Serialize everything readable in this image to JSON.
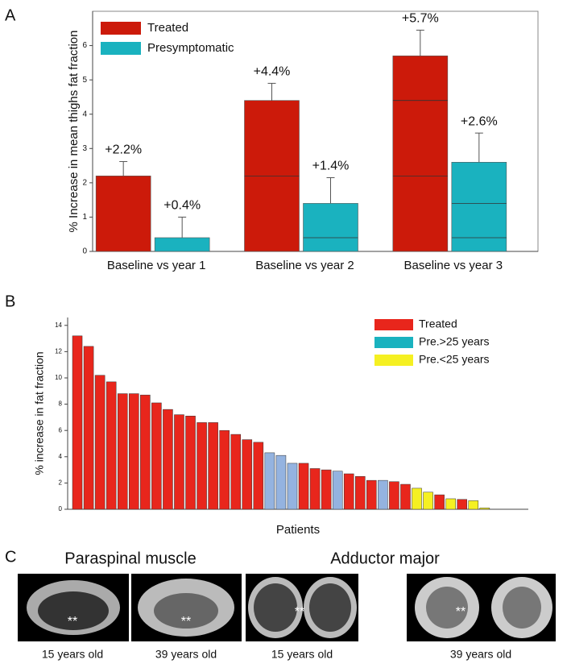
{
  "panel_labels": [
    "A",
    "B",
    "C"
  ],
  "chart_data": [
    {
      "type": "bar",
      "ylabel": "% Increase in mean thighs fat fraction",
      "categories": [
        "Baseline vs year 1",
        "Baseline vs year 2",
        "Baseline vs year 3"
      ],
      "series": [
        {
          "name": "Treated",
          "color": "#cc1a0a",
          "values": [
            2.2,
            4.4,
            5.7
          ],
          "errors": [
            0.42,
            0.5,
            0.75
          ],
          "value_labels": [
            "+2.2%",
            "+4.4%",
            "+5.7%"
          ]
        },
        {
          "name": "Presymptomatic",
          "color": "#1ab2bf",
          "values": [
            0.4,
            1.4,
            2.6
          ],
          "errors": [
            0.6,
            0.75,
            0.85
          ],
          "value_labels": [
            "+0.4%",
            "+1.4%",
            "+2.6%"
          ]
        }
      ],
      "ylim": [
        0,
        7
      ],
      "yticks": [
        0,
        1,
        2,
        3,
        4,
        5,
        6
      ],
      "legend": "upper-left"
    },
    {
      "type": "bar",
      "ylabel": "% increase in fat fraction",
      "xlabel": "Patients",
      "values": [
        13.2,
        12.4,
        10.2,
        9.7,
        8.8,
        8.8,
        8.7,
        8.1,
        7.6,
        7.2,
        7.1,
        6.6,
        6.6,
        6.0,
        5.7,
        5.3,
        5.1,
        4.3,
        4.1,
        3.5,
        3.5,
        3.1,
        3.0,
        2.9,
        2.7,
        2.5,
        2.2,
        2.2,
        2.1,
        1.9,
        1.6,
        1.3,
        1.1,
        0.8,
        0.75,
        0.65,
        0.1
      ],
      "bar_colors": [
        "#e8261c",
        "#e8261c",
        "#e8261c",
        "#e8261c",
        "#e8261c",
        "#e8261c",
        "#e8261c",
        "#e8261c",
        "#e8261c",
        "#e8261c",
        "#e8261c",
        "#e8261c",
        "#e8261c",
        "#e8261c",
        "#e8261c",
        "#e8261c",
        "#e8261c",
        "#94b3e0",
        "#94b3e0",
        "#94b3e0",
        "#e8261c",
        "#e8261c",
        "#e8261c",
        "#94b3e0",
        "#e8261c",
        "#e8261c",
        "#e8261c",
        "#94b3e0",
        "#e8261c",
        "#e8261c",
        "#f5f022",
        "#f5f022",
        "#e8261c",
        "#f5f022",
        "#e8261c",
        "#f5f022",
        "#f5f022"
      ],
      "legend_entries": [
        {
          "name": "Treated",
          "color": "#e8261c"
        },
        {
          "name": "Pre.>25 years",
          "color": "#1ab2bf"
        },
        {
          "name": "Pre.<25 years",
          "color": "#f5f022"
        }
      ],
      "ylim": [
        0,
        14.6
      ],
      "yticks": [
        0,
        2,
        4,
        6,
        8,
        10,
        12,
        14
      ],
      "legend": "upper-right"
    }
  ],
  "images": {
    "titles": [
      "Paraspinal muscle",
      "Adductor major"
    ],
    "captions": [
      "15 years old",
      "39 years old",
      "15 years old",
      "39 years old"
    ],
    "marks": [
      "**",
      "**",
      "**",
      "**"
    ]
  }
}
